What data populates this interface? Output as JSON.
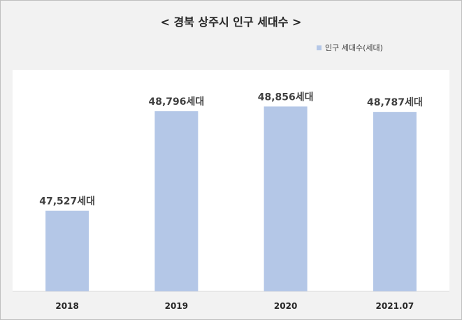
{
  "chart_data": {
    "type": "bar",
    "title": "< 경북 상주시 인구 세대수 >",
    "categories": [
      "2018",
      "2019",
      "2020",
      "2021.07"
    ],
    "series": [
      {
        "name": "인구 세대수(세대)",
        "values": [
          47527,
          48796,
          48856,
          48787
        ],
        "labels": [
          "47,527세대",
          "48,796세대",
          "48,856세대",
          "48,787세대"
        ],
        "color": "#b4c7e7"
      }
    ],
    "xlabel": "",
    "ylabel": "",
    "grid": false,
    "legend_position": "top-right"
  }
}
